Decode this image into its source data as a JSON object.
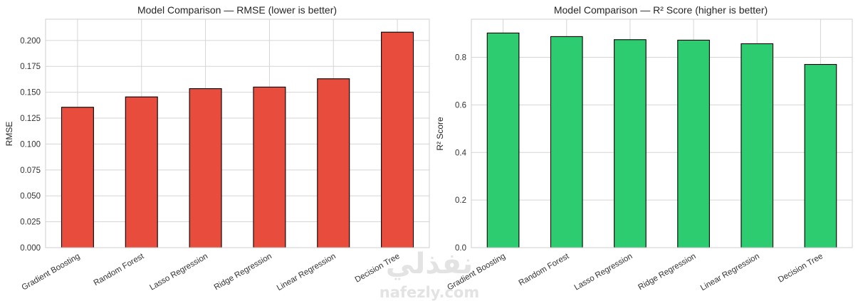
{
  "chart_data": [
    {
      "type": "bar",
      "title": "Model Comparison — RMSE (lower is better)",
      "xlabel": "",
      "ylabel": "RMSE",
      "categories": [
        "Gradient Boosting",
        "Random Forest",
        "Lasso Regression",
        "Ridge Regression",
        "Linear Regression",
        "Decision Tree"
      ],
      "values": [
        0.1355,
        0.1455,
        0.1535,
        0.155,
        0.163,
        0.208
      ],
      "ylim": [
        0,
        0.2205
      ],
      "yticks": [
        0.0,
        0.025,
        0.05,
        0.075,
        0.1,
        0.125,
        0.15,
        0.175,
        0.2
      ],
      "ytick_labels": [
        "0.000",
        "0.025",
        "0.050",
        "0.075",
        "0.100",
        "0.125",
        "0.150",
        "0.175",
        "0.200"
      ],
      "grid": true,
      "bar_color": "#e74c3c",
      "edge_color": "#000000"
    },
    {
      "type": "bar",
      "title": "Model Comparison — R² Score (higher is better)",
      "xlabel": "",
      "ylabel": "R² Score",
      "categories": [
        "Gradient Boosting",
        "Random Forest",
        "Lasso Regression",
        "Ridge Regression",
        "Linear Regression",
        "Decision Tree"
      ],
      "values": [
        0.902,
        0.887,
        0.874,
        0.872,
        0.857,
        0.77
      ],
      "ylim": [
        0,
        0.96
      ],
      "yticks": [
        0.0,
        0.2,
        0.4,
        0.6,
        0.8
      ],
      "ytick_labels": [
        "0.0",
        "0.2",
        "0.4",
        "0.6",
        "0.8"
      ],
      "grid": true,
      "bar_color": "#2ecc71",
      "edge_color": "#000000"
    }
  ],
  "watermark": {
    "arabic": "نفذلي",
    "latin": "nafezly.com",
    "color": "#d9d9d9"
  }
}
